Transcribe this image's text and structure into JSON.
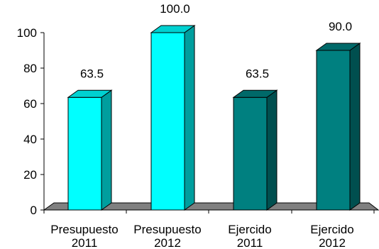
{
  "chart_data": {
    "type": "bar",
    "categories": [
      [
        "Presupuesto",
        "2011"
      ],
      [
        "Presupuesto",
        "2012"
      ],
      [
        "Ejercido",
        "2011"
      ],
      [
        "Ejercido",
        "2012"
      ]
    ],
    "values": [
      63.5,
      100.0,
      63.5,
      90.0
    ],
    "data_labels": [
      "63.5",
      "100.0",
      "63.5",
      "90.0"
    ],
    "colors": [
      "#00ffff",
      "#00ffff",
      "#008080",
      "#008080"
    ],
    "floor_color": "#808080",
    "yticks": [
      "0",
      "20",
      "40",
      "60",
      "80",
      "100"
    ],
    "ylim": [
      0,
      100
    ],
    "title": "",
    "xlabel": "",
    "ylabel": "",
    "grid": false,
    "legend": "none",
    "style": "3d-bars"
  }
}
